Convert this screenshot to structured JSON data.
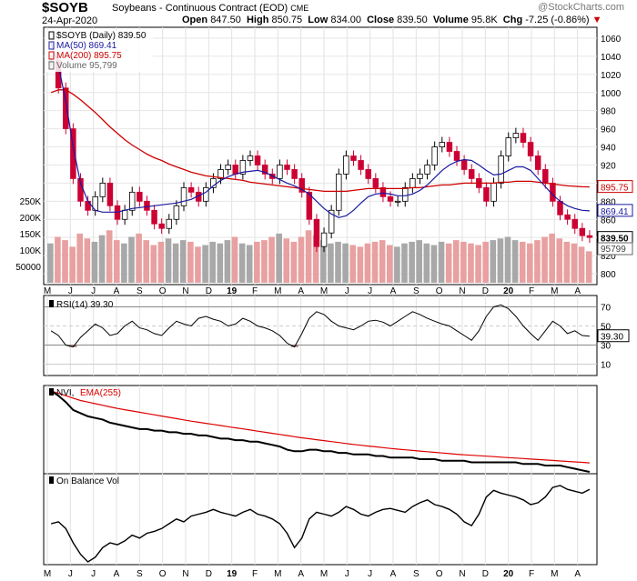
{
  "header": {
    "symbol": "$SOYB",
    "name": "Soybeans - Continuous Contract (EOD)",
    "exchange": "CME",
    "date": "24-Apr-2020",
    "open_label": "Open",
    "open": "847.50",
    "high_label": "High",
    "high": "850.75",
    "low_label": "Low",
    "low": "834.00",
    "close_label": "Close",
    "close": "839.50",
    "volume_label": "Volume",
    "volume": "95.8K",
    "chg_label": "Chg",
    "chg": "-7.25 (-0.86%)",
    "chg_marker": "▼",
    "watermark": "@StockCharts.com"
  },
  "colors": {
    "ma50": "#1a1aa0",
    "ma200": "#cc0000",
    "candle_down": "#cc0033",
    "candle_up": "#000000",
    "vol_up": "#a8a8a8",
    "vol_down": "#e8a0a0",
    "rsi_fill": "#9a6e6e",
    "ema255": "#dd0000"
  },
  "chart_data": [
    {
      "type": "candlestick",
      "legend": [
        {
          "text": "$SOYB (Daily) 839.50",
          "color": "#000000",
          "icon": "candlestick-icon"
        },
        {
          "text": "MA(50) 869.41",
          "color": "#1a1aa0",
          "icon": "line-icon"
        },
        {
          "text": "MA(200) 895.75",
          "color": "#cc0000",
          "icon": "line-icon"
        },
        {
          "text": "Volume 95,799",
          "color": "#666666",
          "icon": "bar-icon"
        }
      ],
      "ylim": [
        790,
        1070
      ],
      "y_ticks": [
        800,
        820,
        840,
        860,
        880,
        900,
        920,
        940,
        960,
        980,
        1000,
        1020,
        1040,
        1060
      ],
      "price_tags": [
        {
          "text": "895.75",
          "color": "#cc0000",
          "value": 895.75
        },
        {
          "text": "869.41",
          "color": "#1a1aa0",
          "value": 869.41
        },
        {
          "text": "839.50",
          "color": "#000000",
          "value": 839.5
        }
      ],
      "volume_ticks": [
        "250K",
        "200K",
        "150K",
        "100K",
        "50000"
      ],
      "volume_tag": "95799",
      "price_series": [
        1035,
        1005,
        960,
        905,
        880,
        870,
        885,
        900,
        875,
        860,
        870,
        890,
        880,
        870,
        855,
        850,
        860,
        875,
        895,
        890,
        880,
        895,
        905,
        915,
        920,
        910,
        925,
        930,
        920,
        910,
        905,
        920,
        915,
        905,
        890,
        860,
        830,
        845,
        870,
        910,
        930,
        925,
        915,
        905,
        895,
        885,
        880,
        880,
        895,
        905,
        910,
        920,
        940,
        945,
        935,
        925,
        915,
        905,
        895,
        880,
        900,
        930,
        950,
        955,
        945,
        930,
        915,
        900,
        880,
        865,
        860,
        850,
        842,
        840
      ],
      "ma50_series": [
        1055,
        1030,
        990,
        940,
        900,
        880,
        870,
        868,
        868,
        868,
        870,
        872,
        873,
        874,
        875,
        876,
        877,
        878,
        880,
        882,
        886,
        890,
        897,
        903,
        907,
        910,
        912,
        913,
        914,
        912,
        908,
        904,
        900,
        897,
        893,
        888,
        880,
        872,
        866,
        862,
        864,
        870,
        878,
        885,
        888,
        889,
        888,
        886,
        886,
        888,
        892,
        898,
        906,
        914,
        920,
        924,
        926,
        925,
        920,
        914,
        909,
        910,
        914,
        918,
        918,
        914,
        905,
        896,
        887,
        880,
        875,
        872,
        870,
        869.4
      ],
      "ma200_series": [
        1000,
        1003,
        1003,
        998,
        992,
        985,
        978,
        970,
        962,
        955,
        948,
        942,
        937,
        932,
        928,
        925,
        921,
        918,
        915,
        912,
        910,
        908,
        907,
        906,
        905,
        904,
        903,
        901,
        900,
        899,
        898,
        897,
        896,
        895,
        894,
        893,
        892,
        891,
        891,
        891,
        891,
        892,
        893,
        894,
        894,
        894,
        894,
        894,
        894,
        895,
        895,
        896,
        897,
        898,
        898,
        899,
        900,
        900,
        900,
        900,
        900,
        901,
        901,
        902,
        902,
        902,
        901,
        900,
        899,
        898,
        897,
        896.5,
        896,
        895.75
      ],
      "volume_series": [
        120,
        140,
        130,
        110,
        150,
        135,
        125,
        145,
        160,
        130,
        120,
        140,
        150,
        130,
        115,
        125,
        135,
        120,
        130,
        125,
        110,
        115,
        125,
        120,
        130,
        140,
        120,
        115,
        125,
        130,
        140,
        150,
        135,
        125,
        140,
        160,
        145,
        130,
        120,
        125,
        120,
        115,
        110,
        120,
        125,
        130,
        115,
        110,
        120,
        125,
        130,
        120,
        115,
        125,
        120,
        130,
        125,
        120,
        115,
        125,
        130,
        135,
        140,
        130,
        125,
        120,
        130,
        140,
        150,
        135,
        125,
        120,
        110,
        96
      ]
    },
    {
      "type": "line",
      "legend": "RSI(14) 39.30",
      "ylim": [
        0,
        80
      ],
      "y_ticks": [
        10,
        30,
        50,
        70
      ],
      "value_tag": "39.30",
      "series": [
        {
          "name": "RSI(14)",
          "values": [
            45,
            40,
            30,
            28,
            38,
            45,
            52,
            48,
            40,
            42,
            50,
            55,
            48,
            46,
            42,
            40,
            48,
            55,
            52,
            50,
            58,
            60,
            57,
            55,
            50,
            52,
            58,
            55,
            50,
            48,
            45,
            40,
            32,
            28,
            42,
            58,
            65,
            62,
            55,
            50,
            48,
            46,
            50,
            55,
            56,
            54,
            50,
            55,
            60,
            65,
            62,
            58,
            55,
            52,
            50,
            45,
            40,
            35,
            45,
            60,
            70,
            72,
            68,
            60,
            50,
            42,
            35,
            45,
            55,
            50,
            42,
            45,
            40,
            39.3
          ]
        }
      ]
    },
    {
      "type": "line",
      "legend": [
        {
          "text": "NVI,",
          "color": "#000000"
        },
        {
          "text": "EMA(255)",
          "color": "#dd0000"
        }
      ],
      "series": [
        {
          "name": "NVI",
          "values": [
            100,
            97,
            93,
            88,
            86,
            84,
            83,
            82,
            80,
            79,
            78,
            77,
            76,
            76,
            75,
            75,
            74,
            74,
            73,
            73,
            72,
            72,
            71,
            70,
            70,
            69,
            69,
            68,
            68,
            67,
            66,
            65,
            63,
            62,
            62,
            63,
            63,
            62,
            62,
            61,
            61,
            60,
            60,
            60,
            59,
            59,
            58,
            58,
            58,
            58,
            57,
            57,
            57,
            56,
            56,
            56,
            56,
            55,
            55,
            55,
            55,
            55,
            55,
            55,
            54,
            54,
            54,
            53,
            53,
            53,
            52,
            51,
            50,
            49
          ]
        },
        {
          "name": "EMA(255)",
          "values": [
            100,
            98.5,
            97,
            95.5,
            94,
            93,
            92,
            91,
            90,
            89,
            88.2,
            87.4,
            86.6,
            85.8,
            85,
            84.2,
            83.4,
            82.6,
            81.8,
            81,
            80.3,
            79.6,
            78.9,
            78.2,
            77.5,
            76.8,
            76.1,
            75.4,
            74.7,
            74,
            73.3,
            72.6,
            71.9,
            71.2,
            70.5,
            69.9,
            69.3,
            68.7,
            68.1,
            67.5,
            66.9,
            66.3,
            65.8,
            65.3,
            64.8,
            64.3,
            63.8,
            63.3,
            62.9,
            62.5,
            62.1,
            61.7,
            61.3,
            60.9,
            60.5,
            60.1,
            59.8,
            59.5,
            59.2,
            58.9,
            58.6,
            58.3,
            58,
            57.7,
            57.4,
            57.1,
            56.8,
            56.5,
            56.2,
            55.9,
            55.6,
            55.3,
            55,
            54.7
          ]
        }
      ]
    },
    {
      "type": "line",
      "legend": "On Balance Vol",
      "series": [
        {
          "name": "On Balance Vol",
          "values": [
            50,
            52,
            45,
            30,
            18,
            10,
            15,
            25,
            30,
            28,
            32,
            38,
            35,
            40,
            42,
            45,
            50,
            55,
            52,
            58,
            60,
            62,
            65,
            62,
            60,
            58,
            62,
            65,
            60,
            58,
            55,
            50,
            40,
            25,
            35,
            55,
            62,
            60,
            58,
            62,
            68,
            65,
            60,
            58,
            62,
            65,
            66,
            64,
            62,
            68,
            72,
            75,
            70,
            68,
            65,
            60,
            52,
            48,
            60,
            78,
            85,
            82,
            80,
            78,
            75,
            70,
            72,
            78,
            88,
            90,
            86,
            84,
            82,
            86
          ]
        }
      ]
    }
  ],
  "x_axis": {
    "labels": [
      "M",
      "J",
      "J",
      "A",
      "S",
      "O",
      "N",
      "D",
      "19",
      "F",
      "M",
      "A",
      "M",
      "J",
      "J",
      "A",
      "S",
      "O",
      "N",
      "D",
      "20",
      "F",
      "M",
      "A"
    ]
  }
}
